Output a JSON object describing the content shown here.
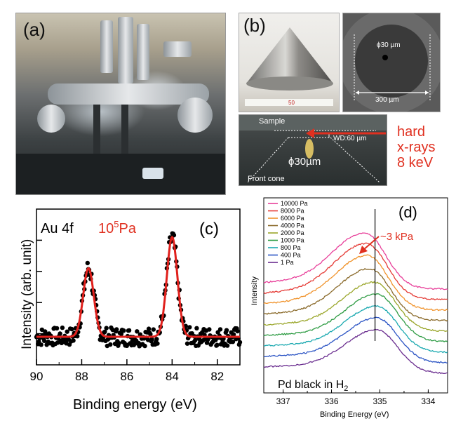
{
  "panel_a": {
    "label": "(a)"
  },
  "panel_b": {
    "label": "(b)",
    "hole_label": "ϕ30 µm",
    "width_label": "300 µm",
    "sample_label": "Sample",
    "wd_label": "WD:60 µm",
    "aperture_label": "ϕ30µm",
    "cone_label": "Front cone",
    "xray_line1": "hard",
    "xray_line2": "x-rays",
    "xray_line3": "8 keV",
    "ruler_text": "50"
  },
  "colors": {
    "accent_red": "#e03020",
    "fit_red": "#e0201c",
    "dots": "#000000"
  },
  "panel_c": {
    "label": "(c)",
    "title_element": "Au 4f",
    "pressure_base": "10",
    "pressure_exp": "5",
    "pressure_unit": "Pa",
    "xlabel": "Binding energy (eV)",
    "ylabel": "Intensity (arb. unit)",
    "xticks": [
      "90",
      "88",
      "86",
      "84",
      "82"
    ]
  },
  "panel_d": {
    "label": "(d)",
    "annotation": "~3 kPa",
    "subtitle_prefix": "Pd black in H",
    "subtitle_sub": "2",
    "xlabel": "Binding Energy (eV)",
    "ylabel": "Intensity",
    "xticks": [
      "337",
      "336",
      "335",
      "334"
    ]
  },
  "chart_data": [
    {
      "type": "scatter",
      "title": "Au 4f",
      "xlabel": "Binding energy (eV)",
      "ylabel": "Intensity (arb. unit)",
      "xlim": [
        90,
        81
      ],
      "ylim": [
        0,
        1
      ],
      "peaks": [
        {
          "center": 87.7,
          "height": 0.62,
          "fwhm": 0.55
        },
        {
          "center": 84.0,
          "height": 0.82,
          "fwhm": 0.55
        }
      ],
      "baseline": 0.18,
      "series": [
        {
          "name": "fit"
        }
      ]
    },
    {
      "type": "line",
      "xlabel": "Binding Energy (eV)",
      "ylabel": "Intensity",
      "xlim": [
        337.4,
        333.6
      ],
      "series": [
        {
          "name": "10000 Pa",
          "color": "#e8409a",
          "peak": 335.3,
          "height": 0.8,
          "width": 0.42,
          "offset": 8
        },
        {
          "name": "8000 Pa",
          "color": "#e53a35",
          "peak": 335.27,
          "height": 0.8,
          "width": 0.42,
          "offset": 7
        },
        {
          "name": "6000 Pa",
          "color": "#f0922a",
          "peak": 335.25,
          "height": 0.78,
          "width": 0.42,
          "offset": 6
        },
        {
          "name": "4000 Pa",
          "color": "#8a6a2a",
          "peak": 335.2,
          "height": 0.74,
          "width": 0.42,
          "offset": 5
        },
        {
          "name": "2000 Pa",
          "color": "#9aa62a",
          "peak": 335.1,
          "height": 0.7,
          "width": 0.42,
          "offset": 4
        },
        {
          "name": "1000 Pa",
          "color": "#2f9c44",
          "peak": 335.05,
          "height": 0.68,
          "width": 0.42,
          "offset": 3
        },
        {
          "name": "800 Pa",
          "color": "#1aa9b0",
          "peak": 335.05,
          "height": 0.66,
          "width": 0.42,
          "offset": 2
        },
        {
          "name": "400 Pa",
          "color": "#2b54c4",
          "peak": 335.05,
          "height": 0.64,
          "width": 0.42,
          "offset": 1
        },
        {
          "name": "1 Pa",
          "color": "#6a2d8f",
          "peak": 335.05,
          "height": 0.62,
          "width": 0.42,
          "offset": 0
        }
      ],
      "reference_line_x": 335.1
    }
  ]
}
